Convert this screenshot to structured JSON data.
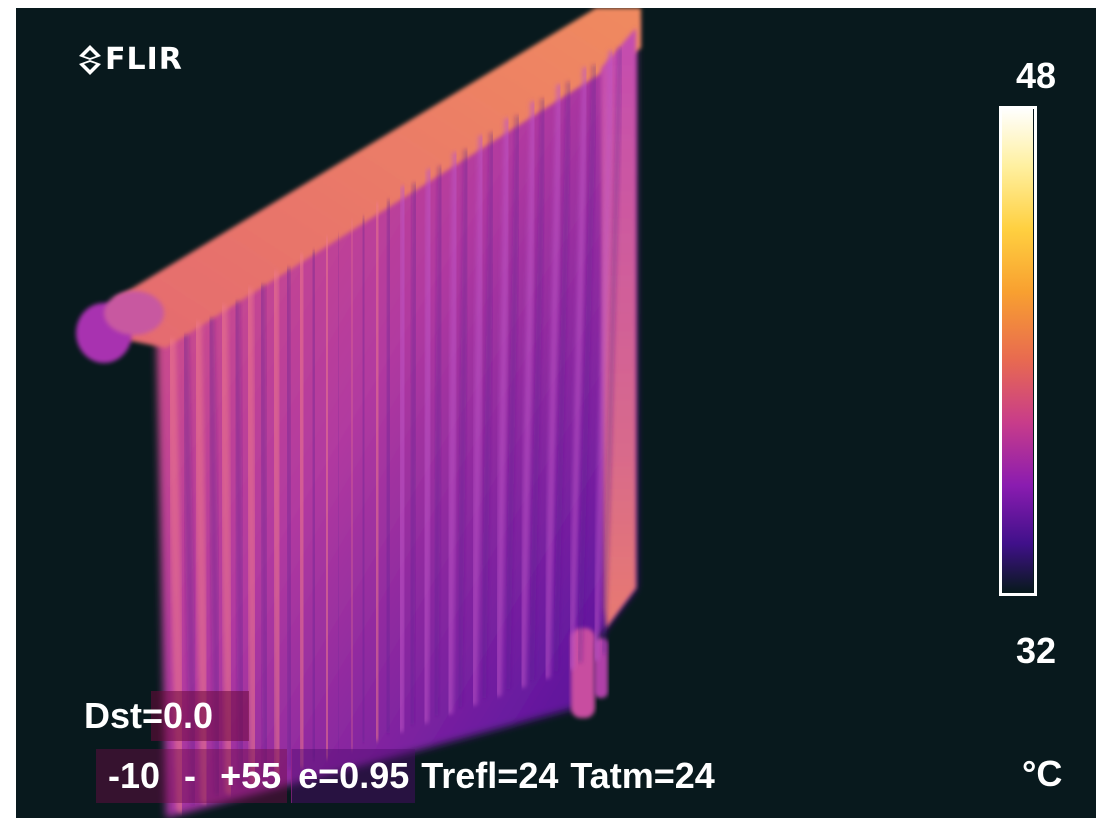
{
  "brand": {
    "logo_text": "FLIR",
    "logo_icon": "flir-diamond-icon"
  },
  "scale": {
    "max": "48",
    "min": "32",
    "unit": "°C",
    "palette": "ironbow",
    "colors": [
      "#ffffff",
      "#ffe060",
      "#ffb030",
      "#f07830",
      "#d0407a",
      "#9a20b0",
      "#4a108a",
      "#08191d"
    ]
  },
  "readout": {
    "distance": "Dst=0.0",
    "range_low": "-10",
    "range_sep": "-",
    "range_high": "+55",
    "emissivity": "e=0.95",
    "reflected_temp": "Trefl=24",
    "atmospheric_temp": "Tatm=24"
  },
  "scene": {
    "subject": "radiator"
  }
}
